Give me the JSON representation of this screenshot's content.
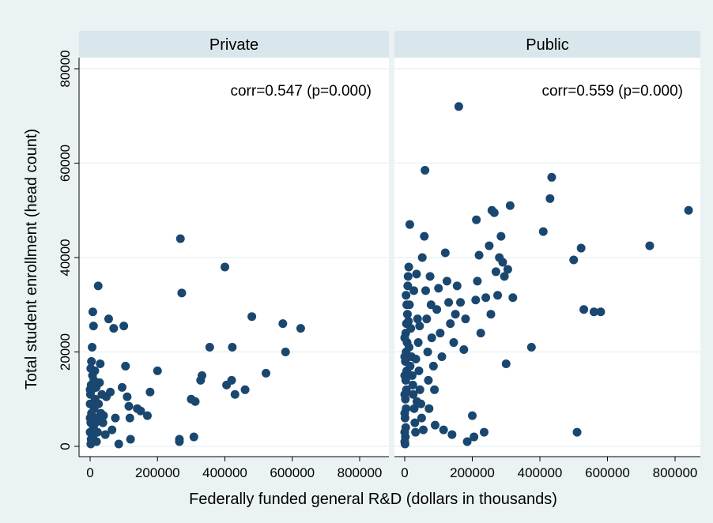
{
  "chart_data": {
    "type": "scatter",
    "xlabel": "Federally funded general R&D (dollars in thousands)",
    "ylabel": "Total student enrollment (head count)",
    "xlim": [
      -10000,
      850000
    ],
    "ylim": [
      -3000,
      82000
    ],
    "x_ticks": [
      0,
      200000,
      400000,
      600000,
      800000
    ],
    "x_tick_labels": [
      "0",
      "200000",
      "400000",
      "600000",
      "800000"
    ],
    "y_ticks": [
      0,
      20000,
      40000,
      60000,
      80000
    ],
    "y_tick_labels": [
      "0",
      "20000",
      "40000",
      "60000",
      "80000"
    ],
    "grid": true,
    "marker_color": "#1a476f",
    "panels": [
      {
        "title": "Private",
        "annotation": "corr=0.547 (p=0.000)",
        "points": [
          [
            2000,
            500
          ],
          [
            3000,
            1500
          ],
          [
            5000,
            3000
          ],
          [
            2000,
            5000
          ],
          [
            8000,
            2000
          ],
          [
            10000,
            4000
          ],
          [
            4000,
            7000
          ],
          [
            6000,
            9000
          ],
          [
            1000,
            11000
          ],
          [
            3000,
            13000
          ],
          [
            7000,
            15000
          ],
          [
            2000,
            16500
          ],
          [
            9000,
            6000
          ],
          [
            12000,
            8000
          ],
          [
            15000,
            10000
          ],
          [
            5000,
            12000
          ],
          [
            11000,
            14000
          ],
          [
            4000,
            18000
          ],
          [
            6000,
            21000
          ],
          [
            18000,
            12500
          ],
          [
            20000,
            6000
          ],
          [
            22000,
            3000
          ],
          [
            25000,
            9000
          ],
          [
            8000,
            28500
          ],
          [
            10000,
            25500
          ],
          [
            24000,
            34000
          ],
          [
            30000,
            17500
          ],
          [
            35000,
            11000
          ],
          [
            40000,
            6500
          ],
          [
            45000,
            2500
          ],
          [
            55000,
            27000
          ],
          [
            60000,
            11500
          ],
          [
            65000,
            3500
          ],
          [
            70000,
            25000
          ],
          [
            75000,
            6000
          ],
          [
            85000,
            500
          ],
          [
            95000,
            12500
          ],
          [
            100000,
            25500
          ],
          [
            105000,
            17000
          ],
          [
            110000,
            10500
          ],
          [
            115000,
            8500
          ],
          [
            118000,
            6000
          ],
          [
            120000,
            1500
          ],
          [
            140000,
            8000
          ],
          [
            150000,
            7500
          ],
          [
            170000,
            6500
          ],
          [
            178000,
            11500
          ],
          [
            200000,
            16000
          ],
          [
            265000,
            1000
          ],
          [
            265000,
            1500
          ],
          [
            268000,
            44000
          ],
          [
            272000,
            32500
          ],
          [
            300000,
            10000
          ],
          [
            308000,
            2000
          ],
          [
            312000,
            9500
          ],
          [
            328000,
            14000
          ],
          [
            332000,
            15000
          ],
          [
            355000,
            21000
          ],
          [
            400000,
            38000
          ],
          [
            405000,
            13000
          ],
          [
            420000,
            14000
          ],
          [
            422000,
            21000
          ],
          [
            430000,
            11000
          ],
          [
            460000,
            12000
          ],
          [
            480000,
            27500
          ],
          [
            522000,
            15500
          ],
          [
            572000,
            26000
          ],
          [
            580000,
            20000
          ],
          [
            625000,
            25000
          ],
          [
            0,
            3000
          ],
          [
            0,
            6000
          ],
          [
            0,
            9000
          ],
          [
            0,
            12000
          ],
          [
            14000,
            16000
          ],
          [
            16000,
            5000
          ],
          [
            19000,
            1000
          ],
          [
            28000,
            13500
          ],
          [
            32000,
            7000
          ],
          [
            38000,
            5000
          ],
          [
            48000,
            10500
          ]
        ]
      },
      {
        "title": "Public",
        "annotation": "corr=0.559 (p=0.000)",
        "points": [
          [
            1000,
            500
          ],
          [
            2000,
            2000
          ],
          [
            3000,
            4000
          ],
          [
            1000,
            6000
          ],
          [
            4000,
            8000
          ],
          [
            2000,
            10000
          ],
          [
            5000,
            12000
          ],
          [
            3000,
            14000
          ],
          [
            6000,
            16000
          ],
          [
            2000,
            18000
          ],
          [
            4000,
            20000
          ],
          [
            7000,
            22000
          ],
          [
            3000,
            24000
          ],
          [
            5000,
            26000
          ],
          [
            8000,
            28000
          ],
          [
            6000,
            30000
          ],
          [
            4000,
            32000
          ],
          [
            9000,
            34000
          ],
          [
            10000,
            36000
          ],
          [
            12000,
            38000
          ],
          [
            15000,
            47000
          ],
          [
            14000,
            30000
          ],
          [
            18000,
            25000
          ],
          [
            20000,
            19000
          ],
          [
            22000,
            15000
          ],
          [
            25000,
            11000
          ],
          [
            28000,
            8000
          ],
          [
            30000,
            5000
          ],
          [
            32000,
            3000
          ],
          [
            35000,
            36500
          ],
          [
            38000,
            27000
          ],
          [
            40000,
            22000
          ],
          [
            42000,
            16000
          ],
          [
            45000,
            12000
          ],
          [
            48000,
            9000
          ],
          [
            50000,
            6000
          ],
          [
            55000,
            3500
          ],
          [
            58000,
            44500
          ],
          [
            60000,
            58500
          ],
          [
            62000,
            33000
          ],
          [
            65000,
            27000
          ],
          [
            68000,
            20000
          ],
          [
            70000,
            14000
          ],
          [
            72000,
            8000
          ],
          [
            75000,
            36000
          ],
          [
            78000,
            30000
          ],
          [
            80000,
            23000
          ],
          [
            85000,
            17000
          ],
          [
            88000,
            12000
          ],
          [
            90000,
            4500
          ],
          [
            95000,
            29000
          ],
          [
            100000,
            33500
          ],
          [
            105000,
            24000
          ],
          [
            110000,
            19000
          ],
          [
            115000,
            3500
          ],
          [
            120000,
            41000
          ],
          [
            125000,
            35000
          ],
          [
            130000,
            30500
          ],
          [
            135000,
            26000
          ],
          [
            140000,
            2500
          ],
          [
            145000,
            22000
          ],
          [
            150000,
            28000
          ],
          [
            155000,
            34000
          ],
          [
            160000,
            72000
          ],
          [
            165000,
            30500
          ],
          [
            175000,
            20500
          ],
          [
            180000,
            27000
          ],
          [
            185000,
            1000
          ],
          [
            200000,
            6500
          ],
          [
            205000,
            2000
          ],
          [
            210000,
            31000
          ],
          [
            212000,
            48000
          ],
          [
            215000,
            35000
          ],
          [
            220000,
            40500
          ],
          [
            225000,
            24000
          ],
          [
            235000,
            3000
          ],
          [
            240000,
            31500
          ],
          [
            250000,
            42500
          ],
          [
            255000,
            28000
          ],
          [
            258000,
            50000
          ],
          [
            265000,
            49500
          ],
          [
            270000,
            37000
          ],
          [
            275000,
            32000
          ],
          [
            280000,
            40000
          ],
          [
            285000,
            44500
          ],
          [
            290000,
            39000
          ],
          [
            295000,
            36000
          ],
          [
            300000,
            17500
          ],
          [
            305000,
            37500
          ],
          [
            312000,
            51000
          ],
          [
            320000,
            31500
          ],
          [
            375000,
            21000
          ],
          [
            410000,
            45500
          ],
          [
            430000,
            52500
          ],
          [
            435000,
            57000
          ],
          [
            500000,
            39500
          ],
          [
            510000,
            3000
          ],
          [
            522000,
            42000
          ],
          [
            530000,
            29000
          ],
          [
            560000,
            28500
          ],
          [
            580000,
            28500
          ],
          [
            725000,
            42500
          ],
          [
            840000,
            50000
          ],
          [
            0,
            1000
          ],
          [
            0,
            3000
          ],
          [
            0,
            7000
          ],
          [
            0,
            11000
          ],
          [
            0,
            15000
          ],
          [
            0,
            19000
          ],
          [
            0,
            23000
          ],
          [
            11000,
            26500
          ],
          [
            13000,
            21000
          ],
          [
            16000,
            17000
          ],
          [
            24000,
            13000
          ],
          [
            27000,
            33000
          ],
          [
            33000,
            18500
          ],
          [
            36000,
            9500
          ],
          [
            44000,
            25500
          ],
          [
            52000,
            40000
          ]
        ]
      }
    ]
  }
}
